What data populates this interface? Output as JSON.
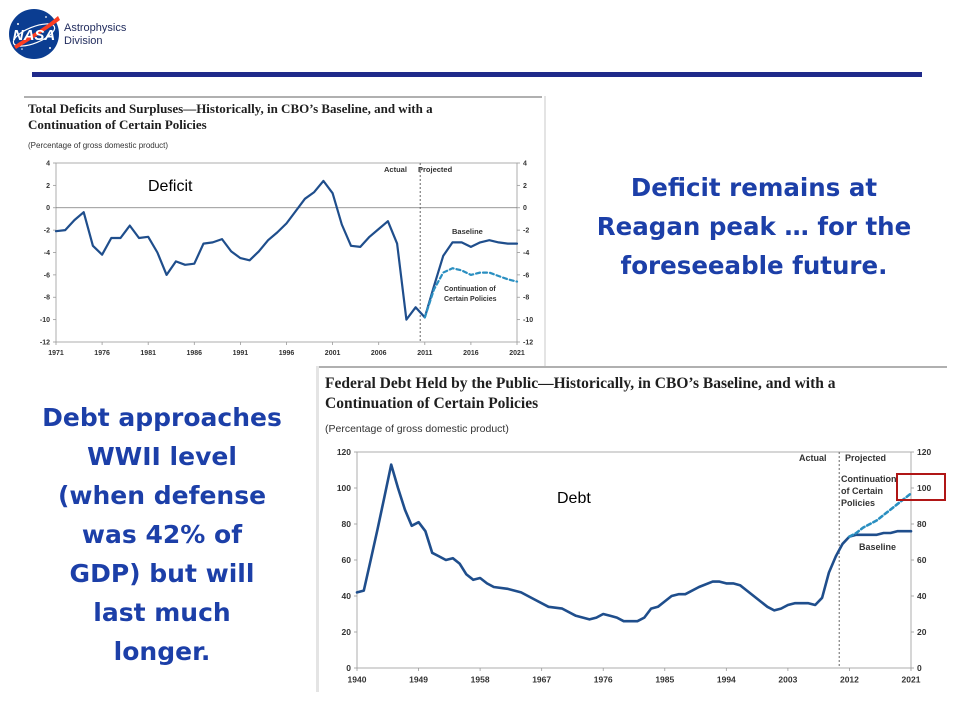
{
  "header": {
    "logo_text": "NASA",
    "division_line1": "Astrophysics",
    "division_line2": "Division",
    "accent_color": "#1f2a8a"
  },
  "deficit_chart": {
    "title_line1": "Total Deficits and Surpluses—Historically, in CBO’s Baseline, and with a",
    "title_line2": "Continuation of Certain Policies",
    "subtitle": "(Percentage of gross domestic product)",
    "label": "Deficit",
    "actual_label": "Actual",
    "projected_label": "Projected",
    "baseline_label": "Baseline",
    "continuation_label_line1": "Continuation of",
    "continuation_label_line2": "Certain Policies"
  },
  "debt_chart": {
    "title_line1": "Federal Debt Held by the Public—Historically, in CBO’s Baseline, and with a",
    "title_line2": "Continuation of Certain Policies",
    "subtitle": "(Percentage of gross domestic product)",
    "label": "Debt",
    "actual_label": "Actual",
    "projected_label": "Projected",
    "baseline_label": "Baseline",
    "continuation_label_line1": "Continuation",
    "continuation_label_line2": "of Certain",
    "continuation_label_line3": "Policies"
  },
  "takeaways": {
    "deficit_line1": "Deficit remains at",
    "deficit_line2": "Reagan peak … for the",
    "deficit_line3": "foreseeable future.",
    "debt_line1": "Debt approaches",
    "debt_line2": "WWII level",
    "debt_line3": "(when defense",
    "debt_line4": "was 42% of",
    "debt_line5": "GDP) but will",
    "debt_line6": "last much",
    "debt_line7": "longer."
  },
  "chart_data": [
    {
      "type": "line",
      "title": "Total Deficits and Surpluses—Historically, in CBO’s Baseline, and with a Continuation of Certain Policies",
      "ylabel": "(Percentage of gross domestic product)",
      "xlabel": "",
      "xlim": [
        1971,
        2021
      ],
      "ylim": [
        -12,
        4
      ],
      "x_ticks": [
        1971,
        1976,
        1981,
        1986,
        1991,
        1996,
        2001,
        2006,
        2011,
        2016,
        2021
      ],
      "y_ticks": [
        -12,
        -10,
        -8,
        -6,
        -4,
        -2,
        0,
        2,
        4
      ],
      "divider_x": 2010.5,
      "color": "#1f4e8c",
      "series": [
        {
          "name": "Baseline",
          "style": "solid",
          "x": [
            1971,
            1972,
            1973,
            1974,
            1975,
            1976,
            1977,
            1978,
            1979,
            1980,
            1981,
            1982,
            1983,
            1984,
            1985,
            1986,
            1987,
            1988,
            1989,
            1990,
            1991,
            1992,
            1993,
            1994,
            1995,
            1996,
            1997,
            1998,
            1999,
            2000,
            2001,
            2002,
            2003,
            2004,
            2005,
            2006,
            2007,
            2008,
            2009,
            2010,
            2011,
            2012,
            2013,
            2014,
            2015,
            2016,
            2017,
            2018,
            2019,
            2020,
            2021
          ],
          "values": [
            -2.1,
            -2.0,
            -1.1,
            -0.4,
            -3.4,
            -4.2,
            -2.7,
            -2.7,
            -1.6,
            -2.7,
            -2.6,
            -4.0,
            -6.0,
            -4.8,
            -5.1,
            -5.0,
            -3.2,
            -3.1,
            -2.8,
            -3.9,
            -4.5,
            -4.7,
            -3.9,
            -2.9,
            -2.2,
            -1.4,
            -0.3,
            0.8,
            1.4,
            2.4,
            1.3,
            -1.5,
            -3.4,
            -3.5,
            -2.6,
            -1.9,
            -1.2,
            -3.2,
            -10.0,
            -8.9,
            -9.8,
            -7.0,
            -4.3,
            -3.1,
            -3.1,
            -3.5,
            -3.1,
            -2.9,
            -3.1,
            -3.2,
            -3.2
          ]
        },
        {
          "name": "Continuation of Certain Policies",
          "style": "dashed",
          "x": [
            2011,
            2012,
            2013,
            2014,
            2015,
            2016,
            2017,
            2018,
            2019,
            2020,
            2021
          ],
          "values": [
            -9.8,
            -7.3,
            -5.8,
            -5.4,
            -5.6,
            -6.0,
            -5.8,
            -5.8,
            -6.1,
            -6.4,
            -6.6
          ]
        }
      ]
    },
    {
      "type": "line",
      "title": "Federal Debt Held by the Public—Historically, in CBO’s Baseline, and with a Continuation of Certain Policies",
      "ylabel": "(Percentage of gross domestic product)",
      "xlabel": "",
      "xlim": [
        1940,
        2021
      ],
      "ylim": [
        0,
        120
      ],
      "x_ticks": [
        1940,
        1949,
        1958,
        1967,
        1976,
        1985,
        1994,
        2003,
        2012,
        2021
      ],
      "y_ticks": [
        0,
        20,
        40,
        60,
        80,
        100,
        120
      ],
      "divider_x": 2010.5,
      "color": "#1f4e8c",
      "series": [
        {
          "name": "Baseline",
          "style": "solid",
          "x": [
            1940,
            1941,
            1942,
            1943,
            1944,
            1945,
            1946,
            1947,
            1948,
            1949,
            1950,
            1951,
            1952,
            1953,
            1954,
            1955,
            1956,
            1957,
            1958,
            1959,
            1960,
            1962,
            1964,
            1966,
            1968,
            1970,
            1972,
            1974,
            1975,
            1976,
            1977,
            1978,
            1979,
            1980,
            1981,
            1982,
            1983,
            1984,
            1985,
            1986,
            1987,
            1988,
            1990,
            1992,
            1993,
            1994,
            1995,
            1996,
            1997,
            1998,
            1999,
            2000,
            2001,
            2002,
            2003,
            2004,
            2005,
            2006,
            2007,
            2008,
            2009,
            2010,
            2011,
            2012,
            2013,
            2014,
            2015,
            2016,
            2017,
            2018,
            2019,
            2020,
            2021
          ],
          "values": [
            42,
            43,
            60,
            77,
            95,
            113,
            100,
            88,
            79,
            81,
            76,
            64,
            62,
            60,
            61,
            58,
            52,
            49,
            50,
            47,
            45,
            44,
            42,
            38,
            34,
            33,
            29,
            27,
            28,
            30,
            29,
            28,
            26,
            26,
            26,
            28,
            33,
            34,
            37,
            40,
            41,
            41,
            45,
            48,
            48,
            47,
            47,
            46,
            43,
            40,
            37,
            34,
            32,
            33,
            35,
            36,
            36,
            36,
            35,
            39,
            53,
            62,
            69,
            73,
            74,
            74,
            74,
            74,
            75,
            75,
            76,
            76,
            76
          ]
        },
        {
          "name": "Continuation of Certain Policies",
          "style": "dashed",
          "x": [
            2012,
            2013,
            2014,
            2015,
            2016,
            2017,
            2018,
            2019,
            2020,
            2021
          ],
          "values": [
            73,
            75,
            78,
            80,
            82,
            85,
            88,
            91,
            94,
            97
          ]
        }
      ]
    }
  ]
}
